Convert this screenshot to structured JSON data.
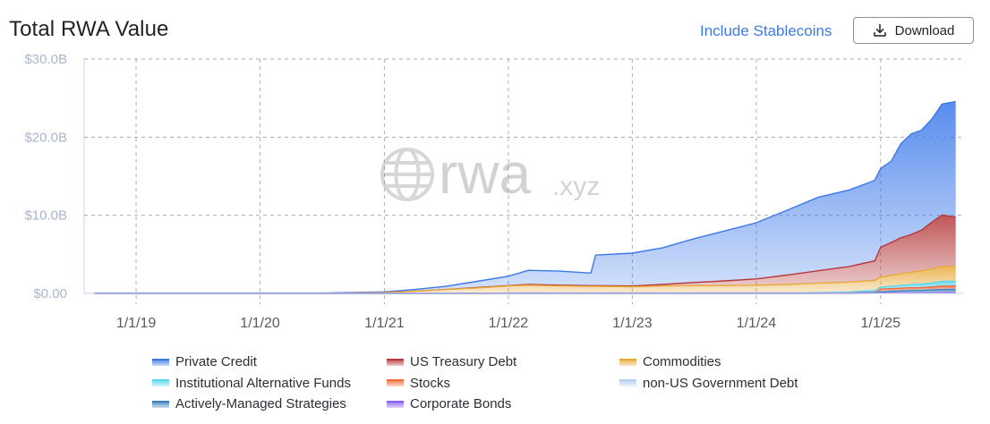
{
  "header": {
    "title": "Total RWA Value",
    "toggle_label": "Include Stablecoins",
    "download_label": "Download"
  },
  "watermark": {
    "text": "rwa",
    "suffix": ".xyz",
    "icon": "globe-icon"
  },
  "chart_data": {
    "type": "area",
    "stacked": true,
    "title": "Total RWA Value",
    "xlabel": "",
    "ylabel": "",
    "x_ticks": [
      "1/1/19",
      "1/1/20",
      "1/1/21",
      "1/1/22",
      "1/1/23",
      "1/1/24",
      "1/1/25"
    ],
    "y_ticks": [
      "$0.00",
      "$10.0B",
      "$20.0B",
      "$30.0B"
    ],
    "ylim": [
      0,
      30
    ],
    "y_unit": "USD billions",
    "grid": true,
    "legend_position": "bottom",
    "x": [
      "2018-09-01",
      "2019-01-01",
      "2019-07-01",
      "2020-01-01",
      "2020-07-01",
      "2021-01-01",
      "2021-04-01",
      "2021-07-01",
      "2021-10-01",
      "2022-01-01",
      "2022-03-01",
      "2022-06-01",
      "2022-09-01",
      "2022-09-15",
      "2023-01-01",
      "2023-04-01",
      "2023-07-01",
      "2023-10-01",
      "2024-01-01",
      "2024-04-01",
      "2024-07-01",
      "2024-10-01",
      "2024-12-15",
      "2025-01-01",
      "2025-02-01",
      "2025-03-01",
      "2025-04-01",
      "2025-05-01",
      "2025-06-01",
      "2025-07-01",
      "2025-08-10"
    ],
    "series": [
      {
        "name": "Corporate Bonds",
        "color": "#8a5cf0",
        "values": [
          0,
          0,
          0,
          0,
          0,
          0,
          0,
          0,
          0,
          0,
          0,
          0,
          0,
          0,
          0,
          0,
          0,
          0,
          0,
          0,
          0,
          0,
          0.02,
          0.05,
          0.06,
          0.06,
          0.07,
          0.08,
          0.08,
          0.09,
          0.1
        ]
      },
      {
        "name": "Actively-Managed Strategies",
        "color": "#3b82b8",
        "values": [
          0,
          0,
          0,
          0,
          0,
          0,
          0,
          0,
          0,
          0,
          0,
          0,
          0,
          0,
          0,
          0,
          0,
          0,
          0,
          0,
          0,
          0.05,
          0.1,
          0.15,
          0.2,
          0.25,
          0.3,
          0.3,
          0.35,
          0.4,
          0.4
        ]
      },
      {
        "name": "non-US Government Debt",
        "color": "#b9cff0",
        "values": [
          0,
          0,
          0,
          0,
          0,
          0,
          0,
          0,
          0,
          0.05,
          0.05,
          0.05,
          0.05,
          0.05,
          0.05,
          0.05,
          0.05,
          0.05,
          0.05,
          0.05,
          0.05,
          0.05,
          0.05,
          0.05,
          0.05,
          0.05,
          0.05,
          0.05,
          0.05,
          0.05,
          0.05
        ]
      },
      {
        "name": "Stocks",
        "color": "#f06b3b",
        "values": [
          0,
          0,
          0,
          0,
          0,
          0,
          0,
          0,
          0,
          0,
          0,
          0,
          0,
          0,
          0,
          0,
          0,
          0,
          0,
          0,
          0,
          0,
          0,
          0.3,
          0.3,
          0.3,
          0.3,
          0.3,
          0.35,
          0.4,
          0.4
        ]
      },
      {
        "name": "Institutional Alternative Funds",
        "color": "#56d6ee",
        "values": [
          0,
          0,
          0,
          0,
          0,
          0,
          0,
          0,
          0,
          0,
          0,
          0,
          0,
          0,
          0,
          0,
          0,
          0,
          0,
          0,
          0.05,
          0.1,
          0.2,
          0.25,
          0.3,
          0.35,
          0.4,
          0.45,
          0.5,
          0.6,
          0.6
        ]
      },
      {
        "name": "Commodities",
        "color": "#e8a93a",
        "values": [
          0,
          0,
          0,
          0,
          0,
          0.1,
          0.3,
          0.5,
          0.7,
          0.9,
          1.0,
          0.9,
          0.85,
          0.85,
          0.8,
          0.9,
          0.95,
          0.95,
          1.0,
          1.1,
          1.2,
          1.25,
          1.3,
          1.3,
          1.4,
          1.5,
          1.6,
          1.7,
          1.8,
          1.9,
          1.9
        ]
      },
      {
        "name": "US Treasury Debt",
        "color": "#b5383a",
        "values": [
          0,
          0,
          0,
          0,
          0,
          0,
          0,
          0,
          0.05,
          0.05,
          0.1,
          0.1,
          0.1,
          0.1,
          0.1,
          0.2,
          0.4,
          0.6,
          0.8,
          1.2,
          1.6,
          2.0,
          2.5,
          3.8,
          4.2,
          4.6,
          4.8,
          5.2,
          6.0,
          6.6,
          6.3
        ]
      },
      {
        "name": "Private Credit",
        "color": "#3b78ea",
        "values": [
          0.05,
          0.05,
          0.05,
          0.05,
          0.05,
          0.1,
          0.2,
          0.4,
          0.8,
          1.2,
          1.8,
          1.8,
          1.6,
          3.9,
          4.2,
          4.7,
          5.6,
          6.4,
          7.2,
          8.3,
          9.4,
          9.8,
          10.3,
          10.1,
          10.4,
          12.0,
          12.9,
          12.8,
          13.2,
          14.2,
          14.8
        ]
      }
    ]
  },
  "legend": [
    {
      "label": "Private Credit",
      "color": "#3b78ea"
    },
    {
      "label": "US Treasury Debt",
      "color": "#b5383a"
    },
    {
      "label": "Commodities",
      "color": "#e8a93a"
    },
    {
      "label": "Institutional Alternative Funds",
      "color": "#56d6ee"
    },
    {
      "label": "Stocks",
      "color": "#f06b3b"
    },
    {
      "label": "non-US Government Debt",
      "color": "#b9cff0"
    },
    {
      "label": "Actively-Managed Strategies",
      "color": "#3b82b8"
    },
    {
      "label": "Corporate Bonds",
      "color": "#8a5cf0"
    }
  ]
}
